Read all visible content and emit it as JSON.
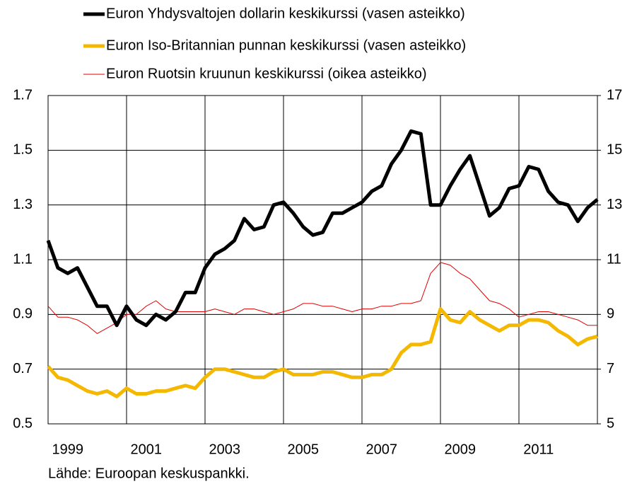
{
  "chart_data": {
    "type": "line",
    "legend": [
      "Euron Yhdysvaltojen dollarin keskikurssi (vasen asteikko)",
      "Euron Iso-Britannian punnan keskikurssi (vasen asteikko)",
      "Euron Ruotsin kruunun keskikurssi (oikea asteikko)"
    ],
    "source": "Lähde: Euroopan keskuspankki.",
    "x": [
      1999,
      1999.25,
      1999.5,
      1999.75,
      2000,
      2000.25,
      2000.5,
      2000.75,
      2001,
      2001.25,
      2001.5,
      2001.75,
      2002,
      2002.25,
      2002.5,
      2002.75,
      2003,
      2003.25,
      2003.5,
      2003.75,
      2004,
      2004.25,
      2004.5,
      2004.75,
      2005,
      2005.25,
      2005.5,
      2005.75,
      2006,
      2006.25,
      2006.5,
      2006.75,
      2007,
      2007.25,
      2007.5,
      2007.75,
      2008,
      2008.25,
      2008.5,
      2008.75,
      2009,
      2009.25,
      2009.5,
      2009.75,
      2010,
      2010.25,
      2010.5,
      2010.75,
      2011,
      2011.25,
      2011.5,
      2011.75,
      2012,
      2012.25,
      2012.5,
      2012.75,
      2013
    ],
    "series": [
      {
        "name": "Euron Yhdysvaltojen dollarin keskikurssi (vasen asteikko)",
        "color": "#000000",
        "width": 5,
        "values": [
          1.17,
          1.07,
          1.05,
          1.07,
          1.0,
          0.93,
          0.93,
          0.86,
          0.93,
          0.88,
          0.86,
          0.9,
          0.88,
          0.91,
          0.98,
          0.98,
          1.07,
          1.12,
          1.14,
          1.17,
          1.25,
          1.21,
          1.22,
          1.3,
          1.31,
          1.27,
          1.22,
          1.19,
          1.2,
          1.27,
          1.27,
          1.29,
          1.31,
          1.35,
          1.37,
          1.45,
          1.5,
          1.57,
          1.56,
          1.3,
          1.3,
          1.37,
          1.43,
          1.48,
          1.37,
          1.26,
          1.29,
          1.36,
          1.37,
          1.44,
          1.43,
          1.35,
          1.31,
          1.3,
          1.24,
          1.29,
          1.32
        ]
      },
      {
        "name": "Euron Iso-Britannian punnan keskikurssi (vasen asteikko)",
        "color": "#f5b800",
        "width": 5,
        "values": [
          0.71,
          0.67,
          0.66,
          0.64,
          0.62,
          0.61,
          0.62,
          0.6,
          0.63,
          0.61,
          0.61,
          0.62,
          0.62,
          0.63,
          0.64,
          0.63,
          0.67,
          0.7,
          0.7,
          0.69,
          0.68,
          0.67,
          0.67,
          0.69,
          0.7,
          0.68,
          0.68,
          0.68,
          0.69,
          0.69,
          0.68,
          0.67,
          0.67,
          0.68,
          0.68,
          0.7,
          0.76,
          0.79,
          0.79,
          0.8,
          0.92,
          0.88,
          0.87,
          0.91,
          0.88,
          0.86,
          0.84,
          0.86,
          0.86,
          0.88,
          0.88,
          0.87,
          0.84,
          0.82,
          0.79,
          0.81,
          0.82
        ]
      },
      {
        "name": "Euron Ruotsin kruunun keskikurssi (oikea asteikko)",
        "color": "#e00000",
        "width": 1,
        "axis": "y2",
        "values": [
          9.3,
          8.9,
          8.9,
          8.8,
          8.6,
          8.3,
          8.5,
          8.7,
          9.0,
          9.0,
          9.3,
          9.5,
          9.2,
          9.1,
          9.1,
          9.1,
          9.1,
          9.2,
          9.1,
          9.0,
          9.2,
          9.2,
          9.1,
          9.0,
          9.1,
          9.2,
          9.4,
          9.4,
          9.3,
          9.3,
          9.2,
          9.1,
          9.2,
          9.2,
          9.3,
          9.3,
          9.4,
          9.4,
          9.5,
          10.5,
          10.9,
          10.8,
          10.5,
          10.3,
          9.9,
          9.5,
          9.4,
          9.2,
          8.9,
          9.0,
          9.1,
          9.1,
          9.0,
          8.9,
          8.8,
          8.6,
          8.6
        ]
      }
    ],
    "xlim": [
      1999,
      2013
    ],
    "xticks": [
      1999,
      2001,
      2003,
      2005,
      2007,
      2009,
      2011
    ],
    "ylim": [
      0.5,
      1.7
    ],
    "yticks": [
      0.5,
      0.7,
      0.9,
      1.1,
      1.3,
      1.5,
      1.7
    ],
    "y2lim": [
      5,
      17
    ],
    "y2ticks": [
      5,
      7,
      9,
      11,
      13,
      15,
      17
    ],
    "grid": true
  }
}
